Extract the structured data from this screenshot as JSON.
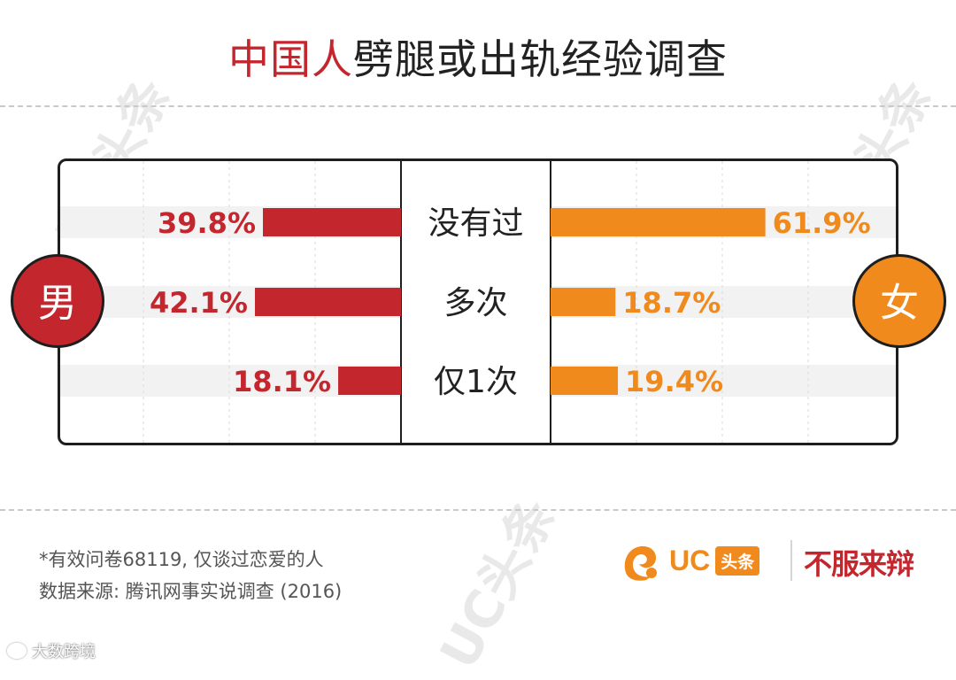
{
  "header": {
    "title_highlight": "中国人",
    "title_rest": "劈腿或出轨经验调查"
  },
  "badges": {
    "male": "男",
    "female": "女"
  },
  "colors": {
    "male": "#c4262e",
    "female": "#f08a1d",
    "grid": "#d9d9d9",
    "band": "#f2f2f2"
  },
  "chart_data": {
    "type": "bar",
    "orientation": "horizontal-butterfly",
    "categories": [
      "没有过",
      "多次",
      "仅1次"
    ],
    "series": [
      {
        "name": "男",
        "values": [
          39.8,
          42.1,
          18.1
        ],
        "labels": [
          "39.8%",
          "42.1%",
          "18.1%"
        ],
        "color": "#c4262e"
      },
      {
        "name": "女",
        "values": [
          61.9,
          18.7,
          19.4
        ],
        "labels": [
          "61.9%",
          "18.7%",
          "19.4%"
        ],
        "color": "#f08a1d"
      }
    ],
    "unit": "%",
    "xlim": [
      0,
      75
    ],
    "grid": true
  },
  "footer": {
    "note": "*有效问卷68119, 仅谈过恋爱的人",
    "source": "数据来源: 腾讯网事实说调查 (2016)"
  },
  "logos": {
    "uc_text": "UC",
    "uc_badge": "头条",
    "brand": "不服来辩",
    "source_mark": "大数跨境"
  },
  "watermark": {
    "text": "UC头条"
  }
}
